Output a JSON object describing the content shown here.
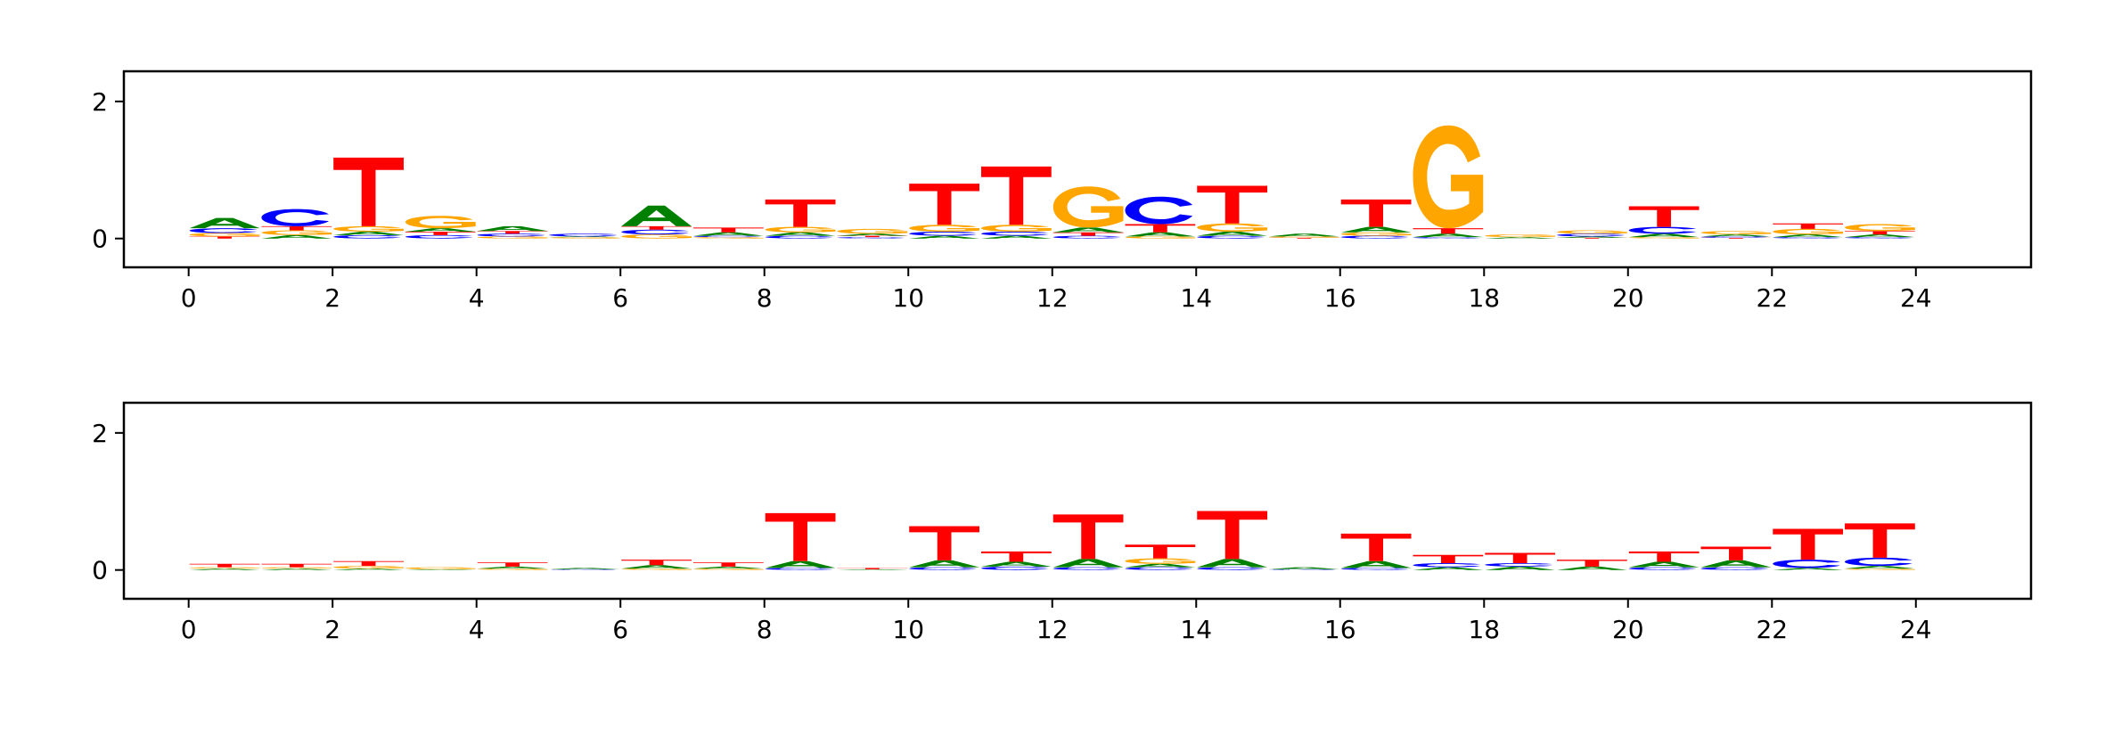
{
  "chart_data": [
    {
      "type": "sequence-logo",
      "title": "",
      "xlabel": "",
      "ylabel": "",
      "xlim": [
        -0.9,
        25.6
      ],
      "ylim": [
        -0.42,
        2.44
      ],
      "xticks": [
        "0",
        "2",
        "4",
        "6",
        "8",
        "10",
        "12",
        "14",
        "16",
        "18",
        "20",
        "22",
        "24"
      ],
      "yticks": [
        "0",
        "2"
      ],
      "grid": false,
      "colors": {
        "A": "#008000",
        "C": "#0000ff",
        "G": "#ffa500",
        "T": "#ff0000"
      },
      "positions": [
        [
          [
            "T",
            0.03
          ],
          [
            "G",
            0.05
          ],
          [
            "C",
            0.07
          ],
          [
            "A",
            0.15
          ]
        ],
        [
          [
            "A",
            0.05
          ],
          [
            "G",
            0.07
          ],
          [
            "T",
            0.06
          ],
          [
            "C",
            0.25
          ]
        ],
        [
          [
            "C",
            0.05
          ],
          [
            "A",
            0.05
          ],
          [
            "G",
            0.08
          ],
          [
            "T",
            1.0
          ]
        ],
        [
          [
            "C",
            0.05
          ],
          [
            "T",
            0.05
          ],
          [
            "A",
            0.05
          ],
          [
            "G",
            0.18
          ]
        ],
        [
          [
            "G",
            0.03
          ],
          [
            "C",
            0.04
          ],
          [
            "T",
            0.04
          ],
          [
            "A",
            0.07
          ]
        ],
        [
          [
            "G",
            0.02
          ],
          [
            "A",
            0.01
          ],
          [
            "C",
            0.04
          ]
        ],
        [
          [
            "G",
            0.06
          ],
          [
            "C",
            0.07
          ],
          [
            "T",
            0.05
          ],
          [
            "A",
            0.3
          ]
        ],
        [
          [
            "G",
            0.02
          ],
          [
            "C",
            0.02
          ],
          [
            "A",
            0.05
          ],
          [
            "T",
            0.07
          ]
        ],
        [
          [
            "C",
            0.04
          ],
          [
            "A",
            0.05
          ],
          [
            "G",
            0.08
          ],
          [
            "T",
            0.4
          ]
        ],
        [
          [
            "C",
            0.02
          ],
          [
            "T",
            0.02
          ],
          [
            "A",
            0.03
          ],
          [
            "G",
            0.07
          ]
        ],
        [
          [
            "A",
            0.04
          ],
          [
            "C",
            0.06
          ],
          [
            "G",
            0.1
          ],
          [
            "T",
            0.6
          ]
        ],
        [
          [
            "A",
            0.04
          ],
          [
            "C",
            0.06
          ],
          [
            "G",
            0.1
          ],
          [
            "T",
            0.85
          ]
        ],
        [
          [
            "C",
            0.04
          ],
          [
            "T",
            0.05
          ],
          [
            "A",
            0.07
          ],
          [
            "G",
            0.6
          ]
        ],
        [
          [
            "G",
            0.03
          ],
          [
            "A",
            0.06
          ],
          [
            "T",
            0.12
          ],
          [
            "C",
            0.4
          ]
        ],
        [
          [
            "C",
            0.04
          ],
          [
            "A",
            0.06
          ],
          [
            "G",
            0.12
          ],
          [
            "T",
            0.55
          ]
        ],
        [
          [
            "T",
            0.01
          ],
          [
            "G",
            0.02
          ],
          [
            "A",
            0.04
          ]
        ],
        [
          [
            "C",
            0.04
          ],
          [
            "G",
            0.05
          ],
          [
            "A",
            0.08
          ],
          [
            "T",
            0.4
          ]
        ],
        [
          [
            "C",
            0.02
          ],
          [
            "A",
            0.05
          ],
          [
            "T",
            0.08
          ],
          [
            "G",
            1.5
          ]
        ],
        [
          [
            "A",
            0.02
          ],
          [
            "G",
            0.04
          ]
        ],
        [
          [
            "T",
            0.01
          ],
          [
            "A",
            0.02
          ],
          [
            "C",
            0.04
          ],
          [
            "G",
            0.05
          ]
        ],
        [
          [
            "G",
            0.02
          ],
          [
            "A",
            0.05
          ],
          [
            "C",
            0.1
          ],
          [
            "T",
            0.3
          ]
        ],
        [
          [
            "T",
            0.01
          ],
          [
            "C",
            0.02
          ],
          [
            "A",
            0.03
          ],
          [
            "G",
            0.05
          ]
        ],
        [
          [
            "C",
            0.02
          ],
          [
            "A",
            0.04
          ],
          [
            "G",
            0.08
          ],
          [
            "T",
            0.08
          ]
        ],
        [
          [
            "C",
            0.02
          ],
          [
            "A",
            0.04
          ],
          [
            "T",
            0.05
          ],
          [
            "G",
            0.1
          ]
        ]
      ]
    },
    {
      "type": "sequence-logo",
      "title": "",
      "xlabel": "",
      "ylabel": "",
      "xlim": [
        -0.9,
        25.6
      ],
      "ylim": [
        -0.42,
        2.44
      ],
      "xticks": [
        "0",
        "2",
        "4",
        "6",
        "8",
        "10",
        "12",
        "14",
        "16",
        "18",
        "20",
        "22",
        "24"
      ],
      "yticks": [
        "0",
        "2"
      ],
      "grid": false,
      "colors": {
        "A": "#008000",
        "C": "#0000ff",
        "G": "#ffa500",
        "T": "#ff0000"
      },
      "positions": [
        [
          [
            "A",
            0.02
          ],
          [
            "G",
            0.02
          ],
          [
            "T",
            0.05
          ]
        ],
        [
          [
            "A",
            0.02
          ],
          [
            "G",
            0.02
          ],
          [
            "T",
            0.05
          ]
        ],
        [
          [
            "A",
            0.02
          ],
          [
            "G",
            0.04
          ],
          [
            "T",
            0.07
          ]
        ],
        [
          [
            "A",
            0.01
          ],
          [
            "G",
            0.03
          ]
        ],
        [
          [
            "G",
            0.02
          ],
          [
            "A",
            0.03
          ],
          [
            "T",
            0.06
          ]
        ],
        [
          [
            "C",
            0.01
          ],
          [
            "A",
            0.02
          ]
        ],
        [
          [
            "G",
            0.02
          ],
          [
            "A",
            0.05
          ],
          [
            "T",
            0.08
          ]
        ],
        [
          [
            "G",
            0.02
          ],
          [
            "A",
            0.03
          ],
          [
            "T",
            0.06
          ]
        ],
        [
          [
            "C",
            0.03
          ],
          [
            "A",
            0.1
          ],
          [
            "T",
            0.7
          ]
        ],
        [
          [
            "A",
            0.01
          ],
          [
            "T",
            0.02
          ]
        ],
        [
          [
            "C",
            0.04
          ],
          [
            "A",
            0.1
          ],
          [
            "T",
            0.5
          ]
        ],
        [
          [
            "C",
            0.05
          ],
          [
            "A",
            0.07
          ],
          [
            "T",
            0.15
          ]
        ],
        [
          [
            "C",
            0.04
          ],
          [
            "A",
            0.12
          ],
          [
            "T",
            0.65
          ]
        ],
        [
          [
            "C",
            0.04
          ],
          [
            "A",
            0.05
          ],
          [
            "G",
            0.08
          ],
          [
            "T",
            0.2
          ]
        ],
        [
          [
            "C",
            0.04
          ],
          [
            "A",
            0.12
          ],
          [
            "T",
            0.7
          ]
        ],
        [
          [
            "C",
            0.01
          ],
          [
            "A",
            0.03
          ]
        ],
        [
          [
            "C",
            0.03
          ],
          [
            "A",
            0.1
          ],
          [
            "T",
            0.4
          ]
        ],
        [
          [
            "A",
            0.04
          ],
          [
            "C",
            0.06
          ],
          [
            "T",
            0.12
          ]
        ],
        [
          [
            "A",
            0.05
          ],
          [
            "C",
            0.05
          ],
          [
            "T",
            0.15
          ]
        ],
        [
          [
            "A",
            0.05
          ],
          [
            "T",
            0.1
          ]
        ],
        [
          [
            "C",
            0.04
          ],
          [
            "A",
            0.08
          ],
          [
            "T",
            0.15
          ]
        ],
        [
          [
            "C",
            0.04
          ],
          [
            "A",
            0.1
          ],
          [
            "T",
            0.2
          ]
        ],
        [
          [
            "A",
            0.03
          ],
          [
            "C",
            0.12
          ],
          [
            "T",
            0.45
          ]
        ],
        [
          [
            "G",
            0.02
          ],
          [
            "A",
            0.04
          ],
          [
            "C",
            0.12
          ],
          [
            "T",
            0.5
          ]
        ]
      ]
    }
  ]
}
